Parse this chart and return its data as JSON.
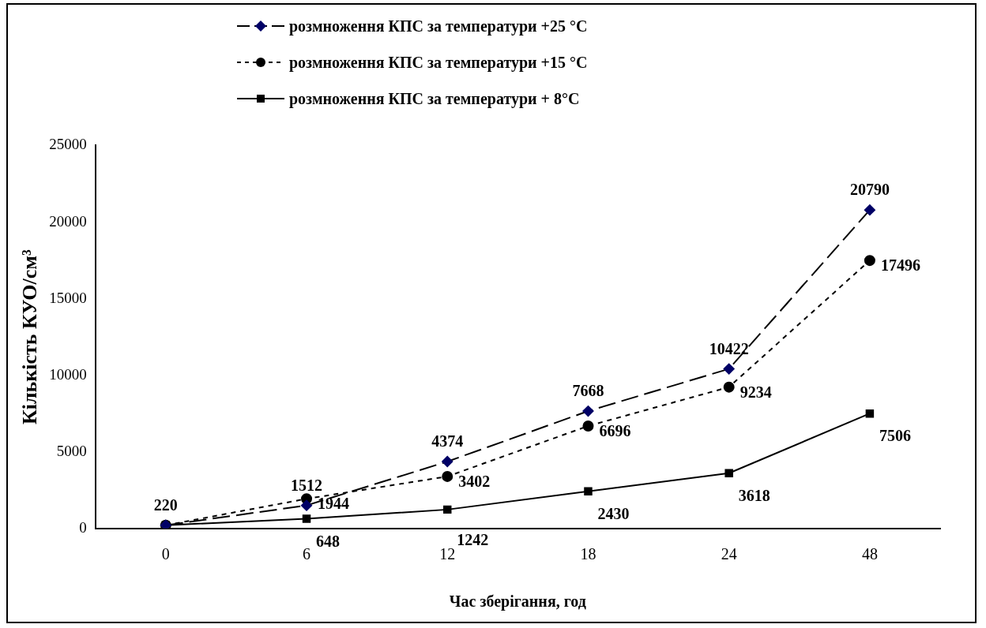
{
  "chart_data": {
    "type": "line",
    "xlabel": "Час зберігання, год",
    "ylabel": "Кількість КУО/см³",
    "categories": [
      "0",
      "6",
      "12",
      "18",
      "24",
      "48"
    ],
    "series": [
      {
        "name": "розмноження КПС за температури +25 °С",
        "color": "#000066",
        "marker": "diamond",
        "line_style": "dashed",
        "values": [
          220,
          1512,
          4374,
          7668,
          10422,
          20790
        ],
        "value_labels": [
          "220",
          "1512",
          "4374",
          "7668",
          "10422",
          "20790"
        ]
      },
      {
        "name": "розмноження КПС за температури +15 °С",
        "color": "#000000",
        "marker": "circle",
        "line_style": "dotted",
        "values": [
          220,
          1944,
          3402,
          6696,
          9234,
          17496
        ],
        "value_labels": [
          null,
          "1944",
          "3402",
          "6696",
          "9234",
          "17496"
        ]
      },
      {
        "name": "розмноження КПС за температури + 8°С",
        "color": "#000000",
        "marker": "square",
        "line_style": "solid",
        "values": [
          220,
          648,
          1242,
          2430,
          3618,
          7506
        ],
        "value_labels": [
          null,
          "648",
          "1242",
          "2430",
          "3618",
          "7506"
        ]
      }
    ],
    "ylim": [
      0,
      25000
    ],
    "yticks": [
      0,
      5000,
      10000,
      15000,
      20000,
      25000
    ],
    "legend": "top"
  }
}
